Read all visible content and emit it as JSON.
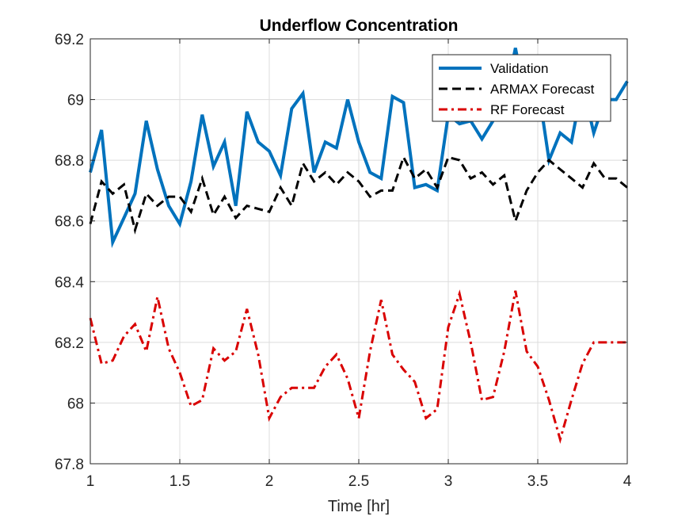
{
  "chart_data": {
    "type": "line",
    "title": "Underflow Concentration",
    "xlabel": "Time [hr]",
    "ylabel": "",
    "xlim": [
      1,
      4
    ],
    "ylim": [
      67.8,
      69.2
    ],
    "xticks": [
      "1",
      "1.5",
      "2",
      "2.5",
      "3",
      "3.5",
      "4"
    ],
    "yticks": [
      "67.8",
      "68",
      "68.2",
      "68.4",
      "68.6",
      "68.8",
      "69",
      "69.2"
    ],
    "grid": true,
    "legend_position": "top-right",
    "x": [
      1.0,
      1.063,
      1.125,
      1.188,
      1.25,
      1.313,
      1.375,
      1.438,
      1.5,
      1.563,
      1.625,
      1.688,
      1.75,
      1.813,
      1.875,
      1.938,
      2.0,
      2.063,
      2.125,
      2.188,
      2.25,
      2.313,
      2.375,
      2.438,
      2.5,
      2.563,
      2.625,
      2.688,
      2.75,
      2.813,
      2.875,
      2.938,
      3.0,
      3.063,
      3.125,
      3.188,
      3.25,
      3.313,
      3.375,
      3.438,
      3.5,
      3.563,
      3.625,
      3.688,
      3.75,
      3.813,
      3.875,
      3.938,
      4.0
    ],
    "series": [
      {
        "name": "Validation",
        "color": "#0072BD",
        "style": "solid",
        "values": [
          68.76,
          68.9,
          68.53,
          68.61,
          68.69,
          68.93,
          68.77,
          68.65,
          68.59,
          68.73,
          68.95,
          68.78,
          68.86,
          68.65,
          68.96,
          68.86,
          68.83,
          68.75,
          68.97,
          69.02,
          68.76,
          68.86,
          68.84,
          69.0,
          68.86,
          68.76,
          68.74,
          69.01,
          68.99,
          68.71,
          68.72,
          68.7,
          68.95,
          68.92,
          68.93,
          68.87,
          68.93,
          68.99,
          69.17,
          68.98,
          69.05,
          68.8,
          68.89,
          68.86,
          69.05,
          68.89,
          69.0,
          69.0,
          69.06
        ]
      },
      {
        "name": "ARMAX Forecast",
        "color": "#000000",
        "style": "dashed",
        "values": [
          68.59,
          68.73,
          68.69,
          68.72,
          68.57,
          68.69,
          68.65,
          68.68,
          68.68,
          68.63,
          68.74,
          68.62,
          68.68,
          68.61,
          68.65,
          68.64,
          68.63,
          68.71,
          68.65,
          68.79,
          68.73,
          68.76,
          68.72,
          68.76,
          68.73,
          68.68,
          68.7,
          68.7,
          68.81,
          68.74,
          68.77,
          68.71,
          68.81,
          68.8,
          68.74,
          68.76,
          68.72,
          68.75,
          68.6,
          68.7,
          68.76,
          68.8,
          68.77,
          68.74,
          68.71,
          68.79,
          68.74,
          68.74,
          68.71
        ]
      },
      {
        "name": "RF Forecast",
        "color": "#D90000",
        "style": "dashdot",
        "values": [
          68.28,
          68.13,
          68.14,
          68.22,
          68.26,
          68.17,
          68.35,
          68.18,
          68.1,
          67.99,
          68.01,
          68.18,
          68.14,
          68.17,
          68.31,
          68.16,
          67.95,
          68.02,
          68.05,
          68.05,
          68.05,
          68.12,
          68.16,
          68.08,
          67.95,
          68.17,
          68.34,
          68.16,
          68.11,
          68.07,
          67.95,
          67.98,
          68.25,
          68.36,
          68.2,
          68.01,
          68.02,
          68.17,
          68.37,
          68.17,
          68.12,
          68.01,
          67.88,
          68.01,
          68.13,
          68.2,
          68.2,
          68.2,
          68.2
        ]
      }
    ]
  }
}
